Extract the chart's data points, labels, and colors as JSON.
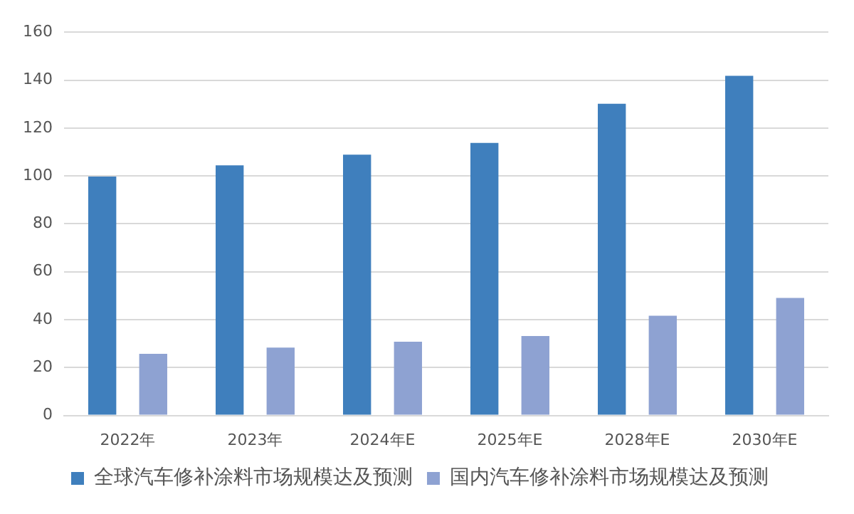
{
  "chart_data": {
    "type": "bar",
    "categories": [
      "2022年",
      "2023年",
      "2024年E",
      "2025年E",
      "2028年E",
      "2030年E"
    ],
    "series": [
      {
        "name": "全球汽车修补涂料市场规模达及预测",
        "color": "#3f7fbd",
        "values": [
          99.7,
          104.4,
          108.9,
          113.8,
          130.1,
          141.8
        ]
      },
      {
        "name": "国内汽车修补涂料市场规模达及预测",
        "color": "#8ea2d2",
        "values": [
          25.7,
          28.3,
          30.8,
          33.2,
          41.6,
          49.1
        ]
      }
    ],
    "ylim": [
      0,
      160
    ],
    "yticks": [
      0,
      20,
      40,
      60,
      80,
      100,
      120,
      140,
      160
    ],
    "grid": "y",
    "legend": "bottom"
  }
}
